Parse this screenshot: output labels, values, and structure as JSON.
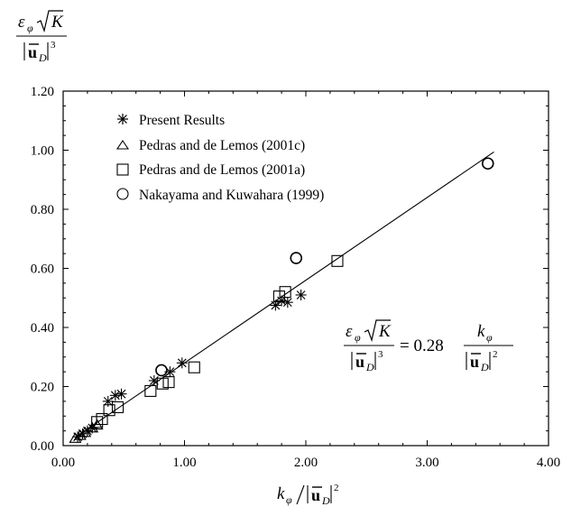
{
  "chart_data": {
    "type": "scatter",
    "xlim": [
      0,
      4
    ],
    "ylim": [
      0,
      1.2
    ],
    "x_ticks": [
      "0.00",
      "1.00",
      "2.00",
      "3.00",
      "4.00"
    ],
    "y_ticks": [
      "0.00",
      "0.20",
      "0.40",
      "0.60",
      "0.80",
      "1.00",
      "1.20"
    ],
    "ylabel": {
      "numerator_symbol": "ε",
      "numerator_subscript": "φ",
      "numerator_radicand": "K",
      "denominator_vector": "u",
      "denominator_subscript": "D",
      "denominator_power": "3"
    },
    "xlabel": {
      "symbol": "k",
      "subscript": "φ",
      "vector": "u",
      "vector_subscript": "D",
      "power": "2"
    },
    "equation": {
      "coefficient": "= 0.28",
      "lhs_symbol": "ε",
      "lhs_subscript": "φ",
      "lhs_radicand": "K",
      "lhs_vector": "u",
      "lhs_vector_subscript": "D",
      "lhs_power": "3",
      "rhs_symbol": "k",
      "rhs_subscript": "φ",
      "rhs_vector": "u",
      "rhs_vector_subscript": "D",
      "rhs_power": "2"
    },
    "fit_line": {
      "slope": 0.28,
      "x": [
        0.1,
        3.55
      ]
    },
    "legend_position": "top-left",
    "series": [
      {
        "name": "Present Results",
        "marker": "asterisk",
        "points": [
          [
            0.12,
            0.03
          ],
          [
            0.16,
            0.04
          ],
          [
            0.2,
            0.05
          ],
          [
            0.24,
            0.06
          ],
          [
            0.37,
            0.15
          ],
          [
            0.43,
            0.17
          ],
          [
            0.48,
            0.175
          ],
          [
            0.75,
            0.22
          ],
          [
            0.88,
            0.25
          ],
          [
            0.98,
            0.28
          ],
          [
            1.75,
            0.475
          ],
          [
            1.8,
            0.49
          ],
          [
            1.85,
            0.485
          ],
          [
            1.96,
            0.51
          ]
        ]
      },
      {
        "name": "Pedras and de Lemos (2001c)",
        "marker": "triangle",
        "points": [
          [
            0.1,
            0.025
          ],
          [
            0.14,
            0.035
          ],
          [
            0.18,
            0.045
          ],
          [
            0.24,
            0.06
          ],
          [
            0.28,
            0.07
          ]
        ]
      },
      {
        "name": "Pedras and de Lemos (2001a)",
        "marker": "square",
        "points": [
          [
            0.28,
            0.08
          ],
          [
            0.32,
            0.09
          ],
          [
            0.38,
            0.12
          ],
          [
            0.45,
            0.13
          ],
          [
            0.72,
            0.185
          ],
          [
            0.82,
            0.21
          ],
          [
            0.87,
            0.215
          ],
          [
            1.08,
            0.265
          ],
          [
            1.78,
            0.505
          ],
          [
            1.83,
            0.52
          ],
          [
            2.26,
            0.625
          ]
        ]
      },
      {
        "name": "Nakayama and Kuwahara (1999)",
        "marker": "circle",
        "points": [
          [
            0.81,
            0.255
          ],
          [
            1.92,
            0.635
          ],
          [
            3.5,
            0.955
          ]
        ]
      }
    ]
  }
}
